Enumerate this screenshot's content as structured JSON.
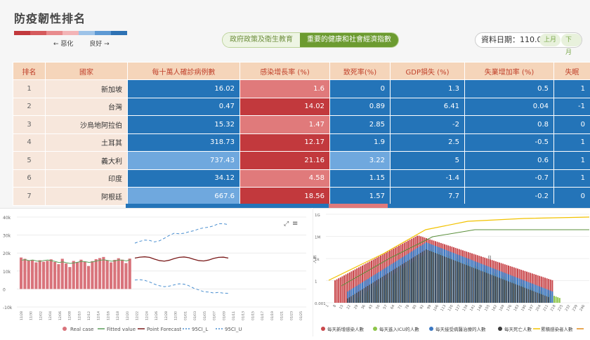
{
  "header": {
    "title": "防疫韌性排名",
    "legend_worse": "← 惡化",
    "legend_better": "良好 →",
    "legend_colors": [
      "#c2393d",
      "#d55a5c",
      "#e88b8d",
      "#f3b4b6",
      "#9dc3e8",
      "#5d99d4",
      "#2e72b4"
    ],
    "tabs": [
      {
        "label": "政府政策及衛生教育",
        "active": false
      },
      {
        "label": "重要的健康和社會經濟指數",
        "active": true
      }
    ],
    "date_label": "資料日期：110.01",
    "prev_month": "上月",
    "next_month": "下月"
  },
  "table": {
    "headers": [
      "排名",
      "國家",
      "每十萬人確診病例數",
      "感染增長率 (%)",
      "致死率(%)",
      "GDP損失 (%)",
      "失業增加率 (%)",
      "失眠"
    ],
    "rows": [
      {
        "rank": "1",
        "country": "新加坡",
        "cases": "16.02",
        "growth": "1.6",
        "fatality": "0",
        "gdp": "1.3",
        "unemp": "0.5",
        "sleep": "1"
      },
      {
        "rank": "2",
        "country": "台灣",
        "cases": "0.47",
        "growth": "14.02",
        "fatality": "0.89",
        "gdp": "6.41",
        "unemp": "0.04",
        "sleep": "-1"
      },
      {
        "rank": "3",
        "country": "沙烏地阿拉伯",
        "cases": "15.32",
        "growth": "1.47",
        "fatality": "2.85",
        "gdp": "-2",
        "unemp": "0.8",
        "sleep": "0"
      },
      {
        "rank": "4",
        "country": "土耳其",
        "cases": "318.73",
        "growth": "12.17",
        "fatality": "1.9",
        "gdp": "2.5",
        "unemp": "-0.5",
        "sleep": "1"
      },
      {
        "rank": "5",
        "country": "義大利",
        "cases": "737.43",
        "growth": "21.16",
        "fatality": "3.22",
        "gdp": "5",
        "unemp": "0.6",
        "sleep": "1"
      },
      {
        "rank": "6",
        "country": "印度",
        "cases": "34.12",
        "growth": "4.58",
        "fatality": "1.15",
        "gdp": "-1.4",
        "unemp": "-0.7",
        "sleep": "1"
      },
      {
        "rank": "7",
        "country": "阿根廷",
        "cases": "667.6",
        "growth": "18.56",
        "fatality": "1.57",
        "gdp": "7.7",
        "unemp": "-0.2",
        "sleep": "0"
      }
    ],
    "cell_colors": [
      [
        "db",
        "lr",
        "db",
        "db",
        "db",
        "db"
      ],
      [
        "db",
        "dr",
        "db",
        "db",
        "db",
        "db"
      ],
      [
        "db",
        "lr",
        "db",
        "db",
        "db",
        "db"
      ],
      [
        "db",
        "dr",
        "db",
        "db",
        "db",
        "db"
      ],
      [
        "lb",
        "dr",
        "lb",
        "db",
        "db",
        "db"
      ],
      [
        "db",
        "lr",
        "db",
        "db",
        "db",
        "db"
      ],
      [
        "lb",
        "dr",
        "db",
        "db",
        "db",
        "db"
      ]
    ]
  },
  "chart_data": [
    {
      "type": "bar",
      "title": "",
      "ylim": [
        -10000,
        40000
      ],
      "yticks": [
        "40k",
        "30k",
        "20k",
        "10k",
        "0",
        "-10k"
      ],
      "xticks": [
        "11/28",
        "11/30",
        "12/02",
        "12/04",
        "12/06",
        "12/08",
        "12/10",
        "12/12",
        "12/14",
        "12/16",
        "12/18",
        "12/20",
        "12/22",
        "12/24",
        "12/26",
        "12/28",
        "12/30",
        "01/01",
        "01/03",
        "01/05",
        "01/07",
        "01/09",
        "01/11",
        "01/13",
        "01/15",
        "01/17",
        "01/19",
        "01/21",
        "01/23",
        "01/25"
      ],
      "series": [
        {
          "name": "Real case",
          "color": "#d9737b",
          "values": [
            17500,
            16800,
            15900,
            16200,
            14800,
            16000,
            15200,
            15700,
            16500,
            15000,
            13800,
            16800,
            14200,
            12200,
            15600,
            14900,
            16300,
            15100,
            12800,
            15500,
            16600,
            17200,
            17800,
            15900,
            14800,
            16200,
            17100,
            16300,
            14400,
            16900
          ]
        },
        {
          "name": "Fitted value",
          "color": "#5a9e5a",
          "values": [
            16000,
            16300,
            15800,
            16100,
            15600,
            15400,
            15900,
            16100,
            15800,
            15300,
            14700,
            15100,
            14600,
            14200,
            14500,
            14900,
            15400,
            15200,
            14800,
            15100,
            15600,
            16000,
            16200,
            15900,
            15500,
            15700,
            16100,
            16000,
            15600,
            16300
          ]
        },
        {
          "name": "Point Forecast",
          "color": "#7a1a1a",
          "values": [
            17200,
            17700,
            17900,
            17600,
            16600,
            15800,
            15500,
            16000,
            16900,
            17600,
            17800,
            17400,
            16500,
            15800,
            15600,
            16100,
            17000,
            17600,
            17700,
            17200
          ]
        },
        {
          "name": "95CI_L",
          "color": "#4a8fd0",
          "values": [
            5000,
            5200,
            4800,
            3900,
            2700,
            1800,
            1300,
            1600,
            2300,
            2900,
            2700,
            1800,
            400,
            -500,
            -1500,
            -1700,
            -2200,
            -1900,
            -2300,
            -2400
          ]
        },
        {
          "name": "95CI_U",
          "color": "#4a8fd0",
          "values": [
            25500,
            26500,
            27200,
            27000,
            26200,
            26800,
            28200,
            29800,
            31000,
            30700,
            31000,
            31800,
            32400,
            33400,
            34000,
            34400,
            35100,
            36300,
            36300,
            35800
          ]
        }
      ],
      "legend": "bottom"
    },
    {
      "type": "area",
      "title": "",
      "ylabel": "人數",
      "xlabel": "日",
      "log_scale": true,
      "yticks": [
        "1G",
        "1M",
        "1k",
        "1",
        "0.001"
      ],
      "xticks": [
        "1",
        "8",
        "15",
        "22",
        "29",
        "36",
        "43",
        "50",
        "57",
        "64",
        "71",
        "78",
        "85",
        "92",
        "99",
        "106",
        "113",
        "120",
        "127",
        "134",
        "141",
        "148",
        "155",
        "162",
        "169",
        "176",
        "183",
        "190",
        "197",
        "204",
        "211",
        "218",
        "225",
        "232",
        "239",
        "246"
      ],
      "series": [
        {
          "name": "每天新增感染人數",
          "color": "#c9484c"
        },
        {
          "name": "每天進入ICU的人數",
          "color": "#8dc549"
        },
        {
          "name": "每天接受病醫治療的人數",
          "color": "#3b78c2"
        },
        {
          "name": "每天死亡人數",
          "color": "#3a3a3a"
        },
        {
          "name": "累積感染者人數",
          "color": "#f2c200"
        },
        {
          "name": "",
          "color": "#e08a1a"
        }
      ],
      "legend": "bottom"
    }
  ]
}
